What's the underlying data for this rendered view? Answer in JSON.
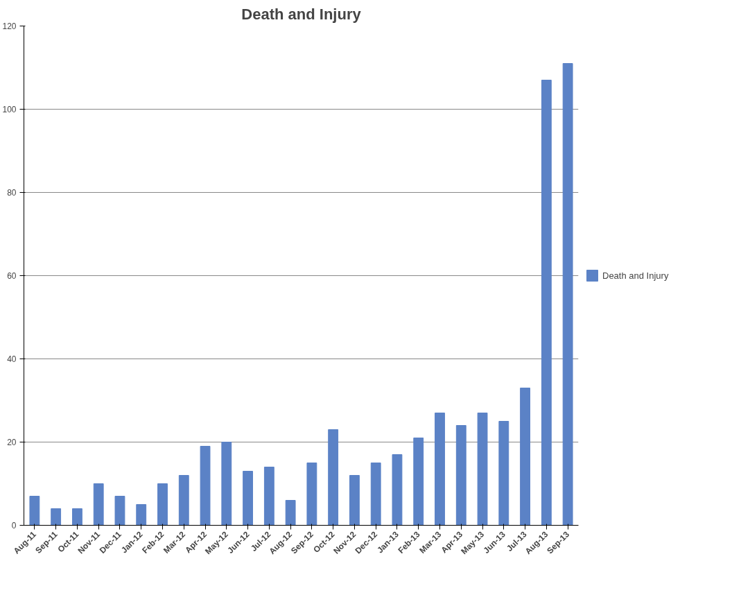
{
  "chart_data": {
    "type": "bar",
    "title": "Death and Injury",
    "categories": [
      "Aug-11",
      "Sep-11",
      "Oct-11",
      "Nov-11",
      "Dec-11",
      "Jan-12",
      "Feb-12",
      "Mar-12",
      "Apr-12",
      "May-12",
      "Jun-12",
      "Jul-12",
      "Aug-12",
      "Sep-12",
      "Oct-12",
      "Nov-12",
      "Dec-12",
      "Jan-13",
      "Feb-13",
      "Mar-13",
      "Apr-13",
      "May-13",
      "Jun-13",
      "Jul-13",
      "Aug-13",
      "Sep-13"
    ],
    "series": [
      {
        "name": "Death and Injury",
        "color": "#5b82c6",
        "values": [
          7,
          4,
          4,
          10,
          7,
          5,
          10,
          12,
          19,
          20,
          13,
          14,
          6,
          15,
          23,
          12,
          15,
          17,
          21,
          27,
          24,
          27,
          25,
          33,
          107,
          111
        ]
      }
    ],
    "ylim": [
      0,
      120
    ],
    "yticks": [
      0,
      20,
      40,
      60,
      80,
      100,
      120
    ],
    "grid": "y",
    "legend": "right"
  }
}
